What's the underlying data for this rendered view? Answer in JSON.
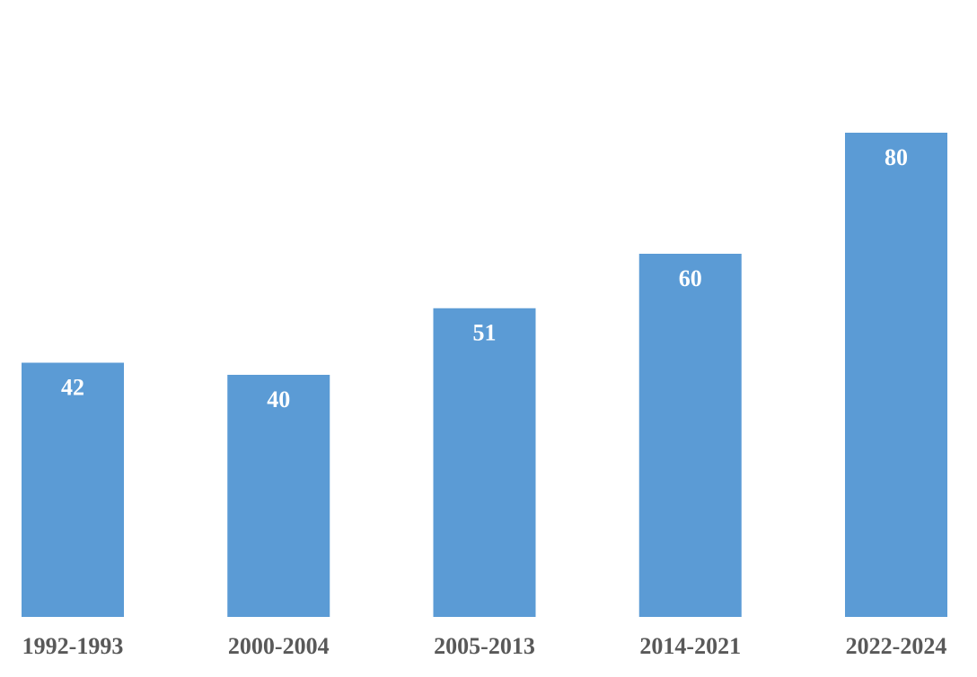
{
  "chart_data": {
    "type": "bar",
    "categories": [
      "1992-1993",
      "2000-2004",
      "2005-2013",
      "2014-2021",
      "2022-2024"
    ],
    "values": [
      42,
      40,
      51,
      60,
      80
    ],
    "color": "#5b9bd5",
    "ylim": [
      0,
      100
    ]
  }
}
